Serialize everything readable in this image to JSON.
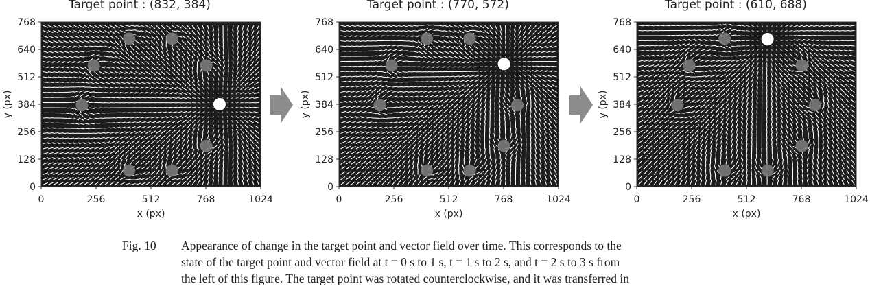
{
  "figure_title_prefix": "Target point : ",
  "colors": {
    "background": "#1c1c1c",
    "arrow": "#ffffff",
    "obstacle": "#7a7a7a",
    "target": "#ffffff",
    "transition_arrow": "#8c8c8c"
  },
  "icons": [
    "right-arrow-icon"
  ],
  "chart_data": [
    {
      "type": "scatter",
      "title": "Target point : (832, 384)",
      "xlabel": "x (px)",
      "ylabel": "y (px)",
      "xlim": [
        0,
        1024
      ],
      "ylim": [
        0,
        768
      ],
      "xticks": [
        "0",
        "256",
        "512",
        "768",
        "1024"
      ],
      "yticks": [
        "0",
        "128",
        "256",
        "384",
        "512",
        "640",
        "768"
      ],
      "target": [
        832,
        384
      ],
      "obstacles": [
        [
          410,
          690
        ],
        [
          610,
          690
        ],
        [
          770,
          565
        ],
        [
          245,
          565
        ],
        [
          190,
          380
        ],
        [
          770,
          190
        ],
        [
          410,
          75
        ],
        [
          610,
          75
        ]
      ]
    },
    {
      "type": "scatter",
      "title": "Target point : (770, 572)",
      "xlabel": "x (px)",
      "ylabel": "y (px)",
      "xlim": [
        0,
        1024
      ],
      "ylim": [
        0,
        768
      ],
      "xticks": [
        "0",
        "256",
        "512",
        "768",
        "1024"
      ],
      "yticks": [
        "0",
        "128",
        "256",
        "384",
        "512",
        "640",
        "768"
      ],
      "target": [
        770,
        572
      ],
      "obstacles": [
        [
          410,
          690
        ],
        [
          610,
          690
        ],
        [
          245,
          565
        ],
        [
          190,
          380
        ],
        [
          832,
          380
        ],
        [
          770,
          190
        ],
        [
          410,
          75
        ],
        [
          610,
          75
        ]
      ]
    },
    {
      "type": "scatter",
      "title": "Target point : (610, 688)",
      "xlabel": "x (px)",
      "ylabel": "y (px)",
      "xlim": [
        0,
        1024
      ],
      "ylim": [
        0,
        768
      ],
      "xticks": [
        "0",
        "256",
        "512",
        "768",
        "1024"
      ],
      "yticks": [
        "0",
        "128",
        "256",
        "384",
        "512",
        "640",
        "768"
      ],
      "target": [
        610,
        688
      ],
      "obstacles": [
        [
          410,
          690
        ],
        [
          245,
          565
        ],
        [
          770,
          565
        ],
        [
          190,
          380
        ],
        [
          832,
          380
        ],
        [
          770,
          190
        ],
        [
          410,
          75
        ],
        [
          610,
          75
        ]
      ]
    }
  ],
  "caption": {
    "label": "Fig. 10",
    "lines": [
      "Appearance of change in the target point and vector field over time. This corresponds to the",
      "state of the target point and vector field at t = 0 s to 1 s, t = 1 s to 2 s, and t = 2 s to 3 s from",
      "the left of this figure. The target point was rotated counterclockwise, and it was transferred in"
    ]
  }
}
